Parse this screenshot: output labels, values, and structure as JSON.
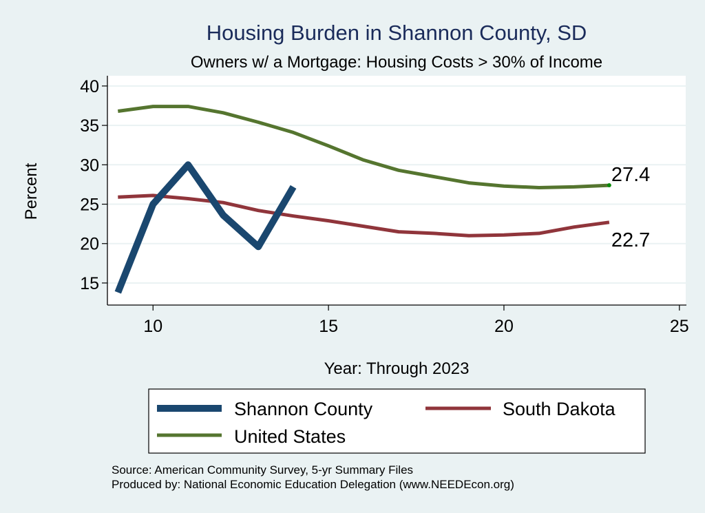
{
  "chart_data": {
    "type": "line",
    "title": "Housing Burden in Shannon County, SD",
    "subtitle": "Owners w/ a Mortgage: Housing Costs > 30% of Income",
    "xlabel": "Year: Through 2023",
    "ylabel": "Percent",
    "xlim": [
      8.7,
      25.2
    ],
    "ylim": [
      12.2,
      41.3
    ],
    "xticks": [
      10,
      15,
      20,
      25
    ],
    "yticks": [
      15,
      20,
      25,
      30,
      35,
      40
    ],
    "grid": "horizontal",
    "legend_position": "bottom",
    "series": [
      {
        "name": "Shannon County",
        "color": "#1a476f",
        "x": [
          9,
          10,
          11,
          12,
          13,
          14
        ],
        "values": [
          13.8,
          25.0,
          30.0,
          23.6,
          19.6,
          27.2
        ]
      },
      {
        "name": "South Dakota",
        "color": "#90353b",
        "x": [
          9,
          10,
          11,
          12,
          13,
          14,
          15,
          16,
          17,
          18,
          19,
          20,
          21,
          22,
          23
        ],
        "values": [
          25.9,
          26.1,
          25.7,
          25.2,
          24.2,
          23.5,
          22.9,
          22.2,
          21.5,
          21.3,
          21.0,
          21.1,
          21.3,
          22.1,
          22.7
        ],
        "end_label": "22.7"
      },
      {
        "name": "United States",
        "color": "#55752f",
        "x": [
          9,
          10,
          11,
          12,
          13,
          14,
          15,
          16,
          17,
          18,
          19,
          20,
          21,
          22,
          23
        ],
        "values": [
          36.8,
          37.4,
          37.4,
          36.6,
          35.4,
          34.1,
          32.4,
          30.6,
          29.3,
          28.5,
          27.7,
          27.3,
          27.1,
          27.2,
          27.4
        ],
        "end_label": "27.4",
        "end_marker_color": "#0a8a0a"
      }
    ],
    "notes": [
      "Source: American Community Survey, 5-yr Summary Files",
      "Produced by: National Economic Education Delegation (www.NEEDEcon.org)"
    ],
    "colors": {
      "background": "#eaf2f3",
      "plot_background": "#ffffff",
      "title": "#1a2b5a",
      "grid": "#eaf2f3"
    }
  }
}
